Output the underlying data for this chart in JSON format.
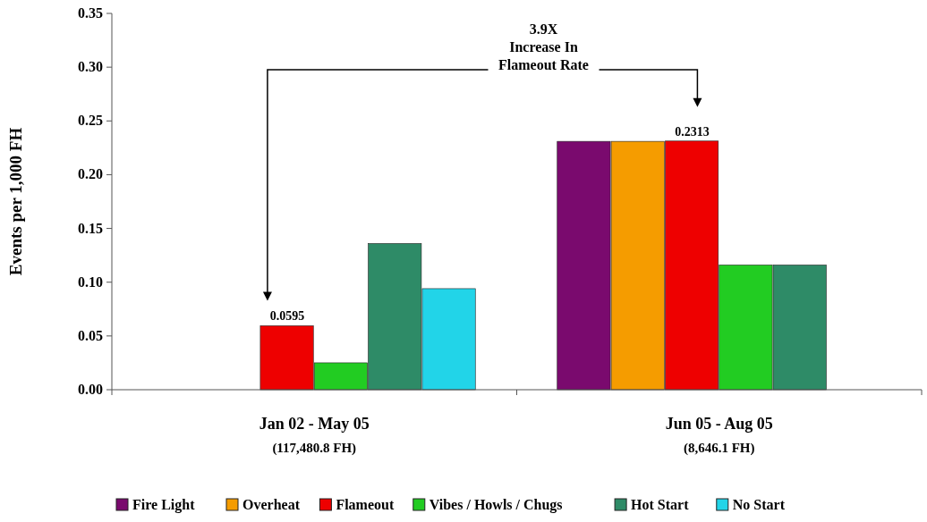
{
  "chart_data": {
    "type": "bar",
    "ylabel": "Events per 1,000 FH",
    "categories": [
      "Jan 02 - May 05\n(117,480.8 FH)",
      "Jun 05 - Aug 05\n(8,646.1 FH)"
    ],
    "series": [
      {
        "name": "Fire Light",
        "color": "#7a0a6e",
        "values": [
          null,
          0.231
        ]
      },
      {
        "name": "Overheat",
        "color": "#f59c00",
        "values": [
          null,
          0.231
        ]
      },
      {
        "name": "Flameout",
        "color": "#ee0000",
        "values": [
          0.0595,
          0.2313
        ],
        "value_labels": [
          "0.0595",
          "0.2313"
        ]
      },
      {
        "name": "Vibes / Howls / Chugs",
        "color": "#22cc22",
        "values": [
          0.025,
          0.116
        ]
      },
      {
        "name": "Hot Start",
        "color": "#2e8b67",
        "values": [
          0.136,
          0.116
        ]
      },
      {
        "name": "No Start",
        "color": "#22d4e8",
        "values": [
          0.094,
          null
        ]
      }
    ],
    "ylim": [
      0,
      0.35
    ],
    "yticks": [
      {
        "value": 0,
        "label": "0.00"
      },
      {
        "value": 0.05,
        "label": "0.05"
      },
      {
        "value": 0.1,
        "label": "0.10"
      },
      {
        "value": 0.15,
        "label": "0.15"
      },
      {
        "value": 0.2,
        "label": "0.20"
      },
      {
        "value": 0.25,
        "label": "0.25"
      },
      {
        "value": 0.3,
        "label": "0.30"
      },
      {
        "value": 0.35,
        "label": "0.35"
      }
    ],
    "annotations": [
      "3.9X\nIncrease In\nFlameout Rate"
    ],
    "legend": "bottom",
    "grid": false
  }
}
